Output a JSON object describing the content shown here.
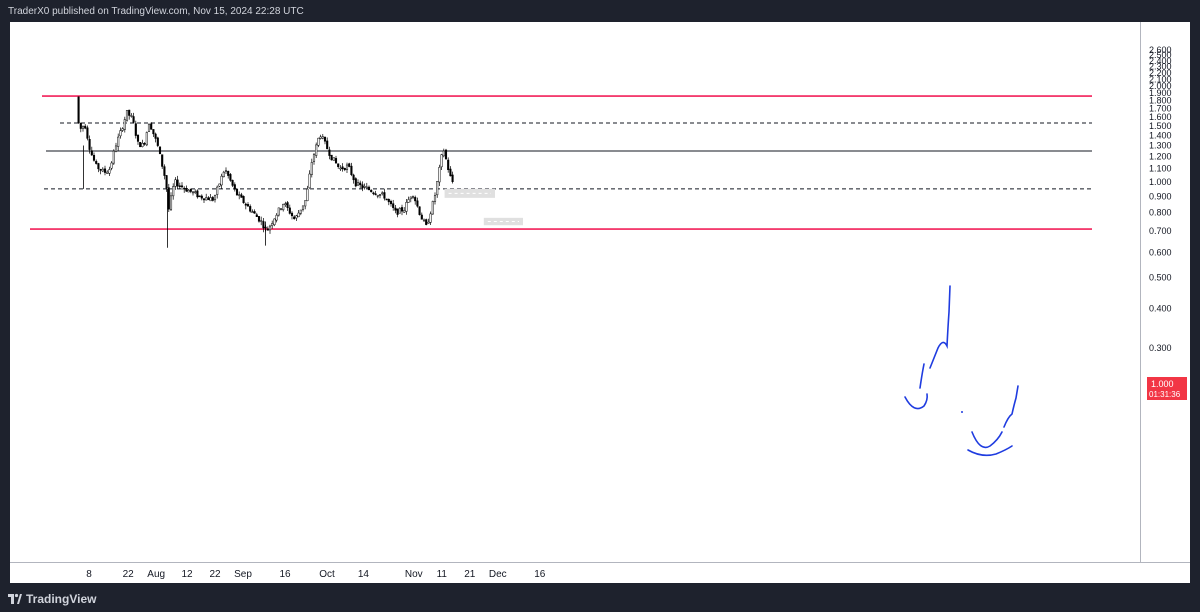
{
  "header": {
    "publish_text": "TraderX0 published on TradingView.com, Nov 15, 2024 22:28 UTC"
  },
  "footer": {
    "brand": "TradingView"
  },
  "price_tag": {
    "value": "1.000",
    "countdown": "01:31:36",
    "color": "#f23645"
  },
  "colors": {
    "up": "#ffffff",
    "down": "#000000",
    "level_red": "#f2215a",
    "drawing_blue": "#1f3ce0",
    "zone": "#e0e0e0",
    "axis_text": "#131722"
  },
  "chart_data": {
    "type": "candlestick",
    "title": "",
    "xlabel": "",
    "ylabel": "",
    "y_scale": "log",
    "ylim": [
      0.25,
      2.65
    ],
    "grid": false,
    "y_ticks": [
      "2.600",
      "2.500",
      "2.400",
      "2.300",
      "2.200",
      "2.100",
      "2.000",
      "1.900",
      "1.800",
      "1.700",
      "1.600",
      "1.500",
      "1.400",
      "1.300",
      "1.200",
      "1.100",
      "1.000",
      "0.900",
      "0.800",
      "0.700",
      "0.600",
      "0.500",
      "0.400",
      "0.300"
    ],
    "x_ticks": [
      {
        "label": "8",
        "date": "2024-07-08"
      },
      {
        "label": "22",
        "date": "2024-07-22"
      },
      {
        "label": "Aug",
        "date": "2024-08-01"
      },
      {
        "label": "12",
        "date": "2024-08-12"
      },
      {
        "label": "22",
        "date": "2024-08-22"
      },
      {
        "label": "Sep",
        "date": "2024-09-01"
      },
      {
        "label": "16",
        "date": "2024-09-16"
      },
      {
        "label": "Oct",
        "date": "2024-10-01"
      },
      {
        "label": "14",
        "date": "2024-10-14"
      },
      {
        "label": "Nov",
        "date": "2024-11-01"
      },
      {
        "label": "11",
        "date": "2024-11-11"
      },
      {
        "label": "21",
        "date": "2024-11-21"
      },
      {
        "label": "Dec",
        "date": "2024-12-01"
      },
      {
        "label": "16",
        "date": "2024-12-16"
      }
    ],
    "price_path": [
      [
        "2024-07-04",
        1.85
      ],
      [
        "2024-07-05",
        1.45
      ],
      [
        "2024-07-07",
        1.52
      ],
      [
        "2024-07-09",
        1.25
      ],
      [
        "2024-07-11",
        1.12
      ],
      [
        "2024-07-14",
        1.07
      ],
      [
        "2024-07-16",
        1.1
      ],
      [
        "2024-07-18",
        1.3
      ],
      [
        "2024-07-20",
        1.45
      ],
      [
        "2024-07-22",
        1.65
      ],
      [
        "2024-07-24",
        1.58
      ],
      [
        "2024-07-26",
        1.32
      ],
      [
        "2024-07-28",
        1.3
      ],
      [
        "2024-07-30",
        1.55
      ],
      [
        "2024-08-02",
        1.3
      ],
      [
        "2024-08-05",
        1.0
      ],
      [
        "2024-08-06",
        0.82
      ],
      [
        "2024-08-08",
        1.0
      ],
      [
        "2024-08-12",
        0.95
      ],
      [
        "2024-08-17",
        0.9
      ],
      [
        "2024-08-22",
        0.88
      ],
      [
        "2024-08-26",
        1.1
      ],
      [
        "2024-08-30",
        0.92
      ],
      [
        "2024-09-04",
        0.82
      ],
      [
        "2024-09-08",
        0.75
      ],
      [
        "2024-09-10",
        0.7
      ],
      [
        "2024-09-13",
        0.78
      ],
      [
        "2024-09-16",
        0.86
      ],
      [
        "2024-09-20",
        0.76
      ],
      [
        "2024-09-24",
        0.88
      ],
      [
        "2024-09-26",
        1.15
      ],
      [
        "2024-09-29",
        1.42
      ],
      [
        "2024-10-03",
        1.2
      ],
      [
        "2024-10-06",
        1.1
      ],
      [
        "2024-10-09",
        1.12
      ],
      [
        "2024-10-12",
        0.98
      ],
      [
        "2024-10-16",
        0.95
      ],
      [
        "2024-10-22",
        0.9
      ],
      [
        "2024-10-26",
        0.8
      ],
      [
        "2024-10-29",
        0.82
      ],
      [
        "2024-11-01",
        0.93
      ],
      [
        "2024-11-04",
        0.78
      ],
      [
        "2024-11-06",
        0.72
      ],
      [
        "2024-11-09",
        0.9
      ],
      [
        "2024-11-12",
        1.28
      ],
      [
        "2024-11-14",
        1.08
      ],
      [
        "2024-11-15",
        1.0
      ]
    ],
    "levels": [
      {
        "price": 1.86,
        "style": "solid",
        "color": "#f2215a"
      },
      {
        "price": 1.53,
        "style": "dashed",
        "color": "#131722"
      },
      {
        "price": 1.25,
        "style": "solid",
        "color": "#131722"
      },
      {
        "price": 0.95,
        "style": "dashed",
        "color": "#131722"
      },
      {
        "price": 0.71,
        "style": "solid",
        "color": "#f2215a"
      }
    ],
    "zones": [
      {
        "from": "2024-11-12",
        "to": "2024-11-30",
        "low": 0.89,
        "high": 0.95
      },
      {
        "from": "2024-11-26",
        "to": "2024-12-10",
        "low": 0.73,
        "high": 0.77
      }
    ]
  }
}
